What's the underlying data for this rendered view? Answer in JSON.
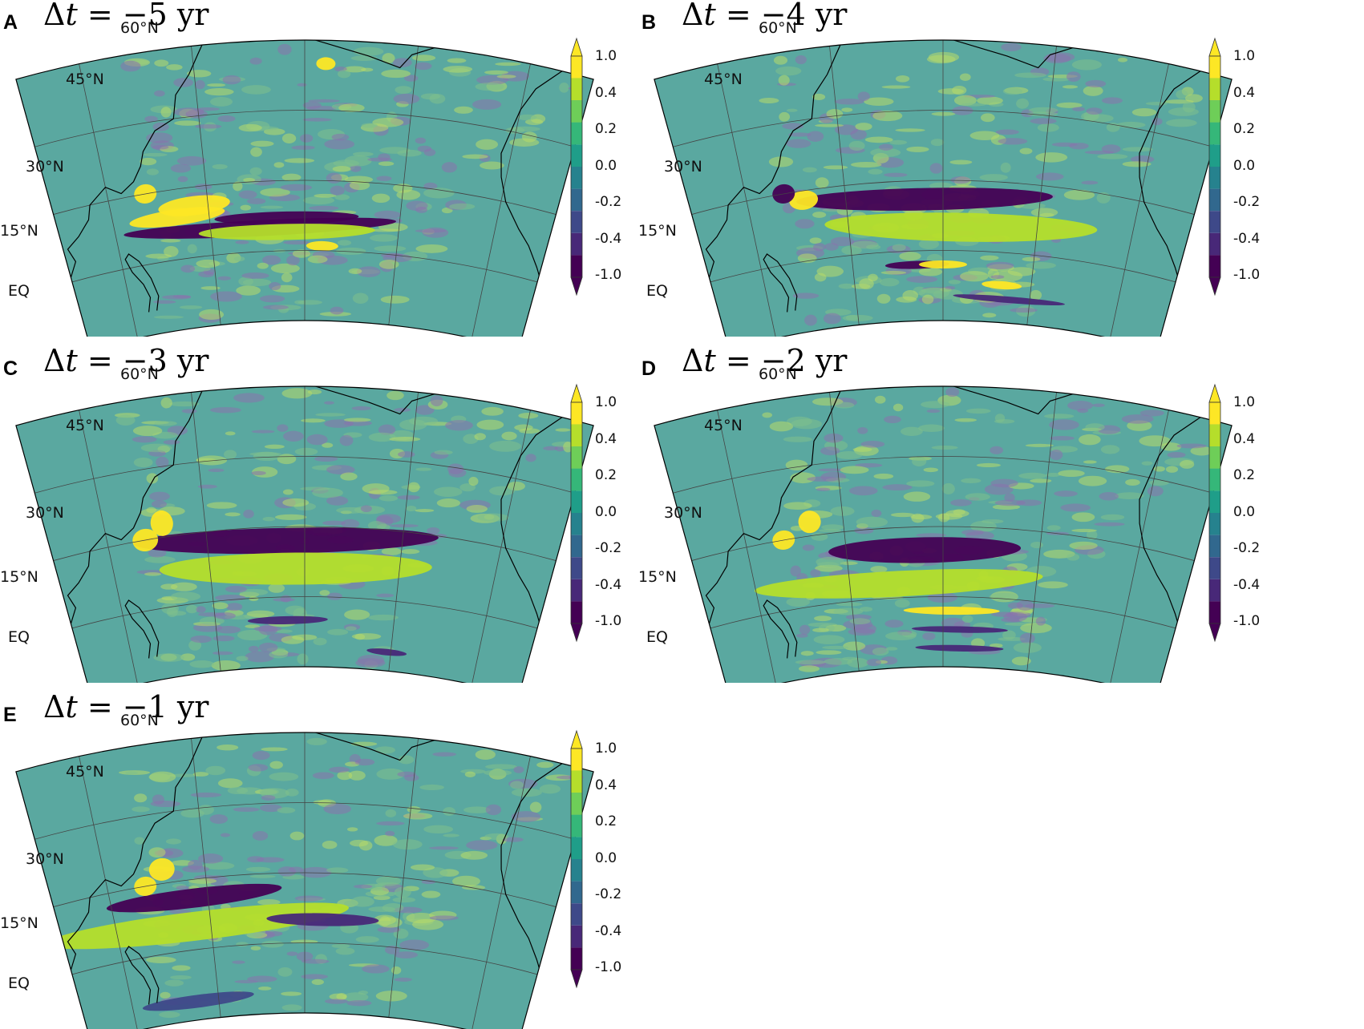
{
  "colorbar": {
    "levels": [
      "1.0",
      "0.4",
      "0.2",
      "0.0",
      "-0.2",
      "-0.4",
      "-1.0"
    ],
    "colors": [
      "#fde725",
      "#b5de2b",
      "#6ece58",
      "#35b779",
      "#1f9e89",
      "#26828e",
      "#31688e",
      "#3e4989",
      "#482878",
      "#440154"
    ]
  },
  "lat_labels": [
    "60°N",
    "45°N",
    "30°N",
    "15°N",
    "EQ"
  ],
  "ocean_color": "#5aa8a0",
  "panels": [
    {
      "letter": "A",
      "title_prefix": "Δ",
      "title_var": "t",
      "title_rest": " = −5 yr"
    },
    {
      "letter": "B",
      "title_prefix": "Δ",
      "title_var": "t",
      "title_rest": " = −4 yr"
    },
    {
      "letter": "C",
      "title_prefix": "Δ",
      "title_var": "t",
      "title_rest": " = −3 yr"
    },
    {
      "letter": "D",
      "title_prefix": "Δ",
      "title_var": "t",
      "title_rest": " = −2 yr"
    },
    {
      "letter": "E",
      "title_prefix": "Δ",
      "title_var": "t",
      "title_rest": " = −1 yr"
    }
  ]
}
